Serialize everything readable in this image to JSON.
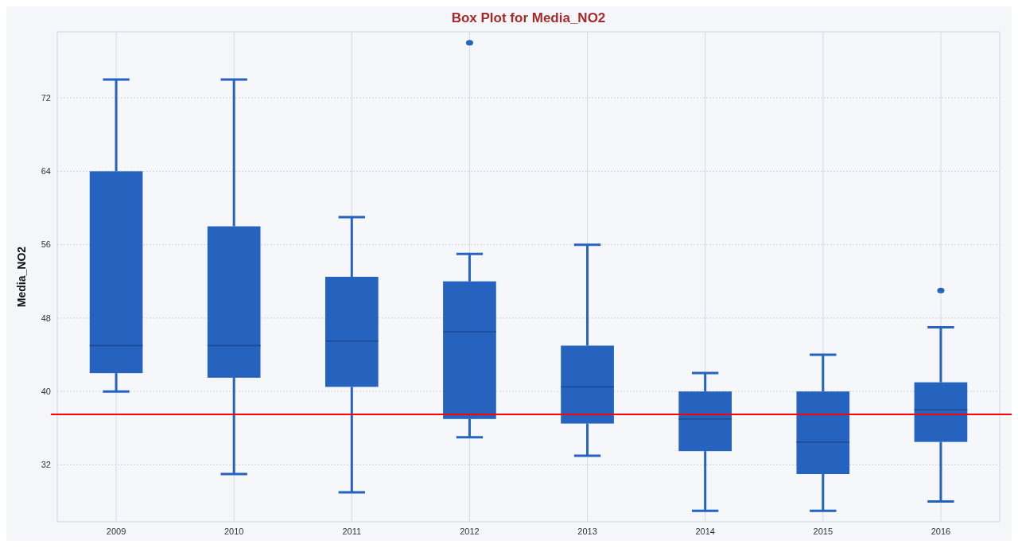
{
  "chart_data": {
    "type": "box",
    "title": "Box Plot for Media_NO2",
    "ylabel": "Media_NO2",
    "categories": [
      "2009",
      "2010",
      "2011",
      "2012",
      "2013",
      "2014",
      "2015",
      "2016"
    ],
    "series": [
      {
        "color": "#2563be",
        "boxes": [
          {
            "low": 40,
            "q1": 42,
            "median": 45,
            "q3": 64,
            "high": 74
          },
          {
            "low": 31,
            "q1": 41.5,
            "median": 45,
            "q3": 58,
            "high": 74
          },
          {
            "low": 29,
            "q1": 40.5,
            "median": 45.5,
            "q3": 52.5,
            "high": 59
          },
          {
            "low": 35,
            "q1": 37,
            "median": 46.5,
            "q3": 52,
            "high": 55,
            "outliers": [
              78
            ]
          },
          {
            "low": 33,
            "q1": 36.5,
            "median": 40.5,
            "q3": 45,
            "high": 56
          },
          {
            "low": 27,
            "q1": 33.5,
            "median": 37,
            "q3": 40,
            "high": 42
          },
          {
            "low": 27,
            "q1": 31,
            "median": 34.5,
            "q3": 40,
            "high": 44
          },
          {
            "low": 28,
            "q1": 34.5,
            "median": 38,
            "q3": 41,
            "high": 47,
            "outliers": [
              51
            ]
          }
        ]
      }
    ],
    "ylim": [
      25.8,
      79.2
    ],
    "yticks": [
      32,
      40,
      48,
      56,
      64,
      72
    ],
    "grid": true,
    "ref_lines": [
      {
        "axis": "y",
        "value": 37.5,
        "color": "#ff0000"
      }
    ]
  }
}
